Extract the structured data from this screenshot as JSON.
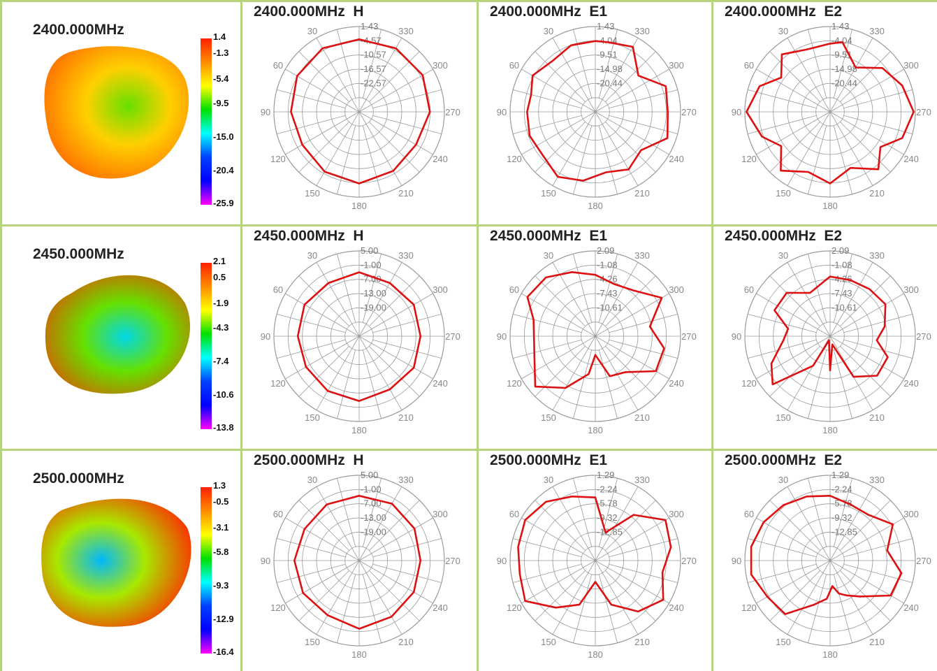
{
  "colors": {
    "background": "#ffffff",
    "cell_border": "#b7d47e",
    "pattern_line": "#dd1111",
    "grid_line": "#9a9a9a",
    "colorbar": [
      "#ff2000",
      "#ff8c00",
      "#ffff00",
      "#00e000",
      "#00ffff",
      "#0040ff",
      "#0000ff",
      "#ff00ff"
    ]
  },
  "rows": [
    {
      "freq": "2400.000MHz",
      "colorbar_labels": [
        "1.4",
        "-1.3",
        "-5.4",
        "-9.5",
        "-15.0",
        "-20.4",
        "-25.9"
      ],
      "plots": [
        {
          "title": "2400.000MHz  H",
          "ring_labels": [
            "1.43",
            "-4.57",
            "-10.57",
            "-16.57",
            "-22.57"
          ]
        },
        {
          "title": "2400.000MHz  E1",
          "ring_labels": [
            "1.43",
            "-4.04",
            "-9.51",
            "-14.98",
            "-20.44"
          ]
        },
        {
          "title": "2400.000MHz  E2",
          "ring_labels": [
            "1.43",
            "-4.04",
            "-9.51",
            "-14.98",
            "-20.44"
          ]
        }
      ]
    },
    {
      "freq": "2450.000MHz",
      "colorbar_labels": [
        "2.1",
        "0.5",
        "-1.9",
        "-4.3",
        "-7.4",
        "-10.6",
        "-13.8"
      ],
      "plots": [
        {
          "title": "2450.000MHz  H",
          "ring_labels": [
            "5.00",
            "-1.00",
            "-7.00",
            "-13.00",
            "-19.00"
          ]
        },
        {
          "title": "2450.000MHz  E1",
          "ring_labels": [
            "2.09",
            "-1.08",
            "-4.26",
            "-7.43",
            "-10.61"
          ]
        },
        {
          "title": "2450.000MHz  E2",
          "ring_labels": [
            "2.09",
            "-1.08",
            "-4.26",
            "-7.43",
            "-10.61"
          ]
        }
      ]
    },
    {
      "freq": "2500.000MHz",
      "colorbar_labels": [
        "1.3",
        "-0.5",
        "-3.1",
        "-5.8",
        "-9.3",
        "-12.9",
        "-16.4"
      ],
      "plots": [
        {
          "title": "2500.000MHz  H",
          "ring_labels": [
            "5.00",
            "-1.00",
            "-7.00",
            "-13.00",
            "-19.00"
          ]
        },
        {
          "title": "2500.000MHz  E1",
          "ring_labels": [
            "1.29",
            "-2.24",
            "-5.78",
            "-9.32",
            "-12.85"
          ]
        },
        {
          "title": "2500.000MHz  E2",
          "ring_labels": [
            "1.29",
            "-2.24",
            "-5.78",
            "-9.32",
            "-12.85"
          ]
        }
      ]
    }
  ],
  "angle_labels": [
    "30",
    "330",
    "60",
    "300",
    "90",
    "270",
    "120",
    "240",
    "150",
    "210",
    "180"
  ],
  "chart_data": [
    {
      "type": "polar",
      "title": "2400.000MHz  H",
      "angles_deg": [
        0,
        30,
        60,
        90,
        120,
        150,
        180,
        210,
        240,
        270,
        300,
        330
      ],
      "r_fraction": [
        0.85,
        0.86,
        0.84,
        0.8,
        0.77,
        0.81,
        0.84,
        0.8,
        0.77,
        0.83,
        0.86,
        0.86
      ]
    },
    {
      "type": "polar",
      "title": "2400.000MHz  E1",
      "angles_deg": [
        0,
        20,
        40,
        60,
        75,
        90,
        110,
        130,
        150,
        170,
        190,
        210,
        230,
        250,
        270,
        290,
        310,
        330,
        350
      ],
      "r_fraction": [
        0.83,
        0.83,
        0.78,
        0.85,
        0.78,
        0.8,
        0.82,
        0.8,
        0.88,
        0.82,
        0.72,
        0.78,
        0.7,
        0.9,
        0.85,
        0.88,
        0.66,
        0.88,
        0.83
      ]
    },
    {
      "type": "polar",
      "title": "2400.000MHz  E2",
      "angles_deg": [
        0,
        20,
        40,
        55,
        70,
        90,
        110,
        125,
        140,
        160,
        180,
        200,
        220,
        235,
        250,
        270,
        290,
        310,
        330,
        350
      ],
      "r_fraction": [
        0.8,
        0.78,
        0.88,
        0.7,
        0.88,
        0.98,
        0.85,
        0.7,
        0.9,
        0.75,
        0.84,
        0.7,
        0.88,
        0.72,
        0.9,
        0.98,
        0.9,
        0.8,
        0.6,
        0.83
      ]
    },
    {
      "type": "polar",
      "title": "2450.000MHz  H",
      "angles_deg": [
        0,
        30,
        60,
        90,
        120,
        150,
        180,
        210,
        240,
        270,
        300,
        330
      ],
      "r_fraction": [
        0.75,
        0.72,
        0.74,
        0.72,
        0.72,
        0.74,
        0.76,
        0.72,
        0.74,
        0.72,
        0.74,
        0.72
      ]
    },
    {
      "type": "polar",
      "title": "2450.000MHz  E1",
      "angles_deg": [
        0,
        20,
        40,
        60,
        75,
        90,
        110,
        130,
        150,
        170,
        180,
        200,
        220,
        240,
        260,
        280,
        300,
        320,
        340
      ],
      "r_fraction": [
        0.72,
        0.8,
        0.9,
        0.92,
        0.75,
        0.72,
        0.76,
        0.92,
        0.7,
        0.45,
        0.22,
        0.5,
        0.55,
        0.82,
        0.82,
        0.65,
        0.9,
        0.7,
        0.65
      ]
    },
    {
      "type": "polar",
      "title": "2450.000MHz  E2",
      "angles_deg": [
        0,
        25,
        45,
        65,
        80,
        95,
        115,
        130,
        150,
        165,
        180,
        195,
        210,
        230,
        250,
        265,
        280,
        300,
        320,
        340
      ],
      "r_fraction": [
        0.7,
        0.56,
        0.72,
        0.72,
        0.5,
        0.55,
        0.76,
        0.88,
        0.4,
        0.05,
        0.4,
        0.1,
        0.55,
        0.72,
        0.72,
        0.55,
        0.65,
        0.75,
        0.72,
        0.7
      ]
    },
    {
      "type": "polar",
      "title": "2500.000MHz  H",
      "angles_deg": [
        0,
        30,
        60,
        90,
        120,
        150,
        180,
        210,
        240,
        270,
        300,
        330
      ],
      "r_fraction": [
        0.76,
        0.76,
        0.74,
        0.76,
        0.76,
        0.74,
        0.8,
        0.76,
        0.74,
        0.72,
        0.75,
        0.77
      ]
    },
    {
      "type": "polar",
      "title": "2500.000MHz  E1",
      "angles_deg": [
        0,
        20,
        40,
        60,
        80,
        100,
        120,
        140,
        160,
        180,
        200,
        220,
        240,
        260,
        280,
        300,
        320,
        340
      ],
      "r_fraction": [
        0.74,
        0.8,
        0.9,
        0.95,
        0.92,
        0.9,
        0.95,
        0.72,
        0.55,
        0.25,
        0.55,
        0.78,
        0.92,
        0.8,
        0.9,
        0.95,
        0.7,
        0.35
      ]
    },
    {
      "type": "polar",
      "title": "2500.000MHz  E2",
      "angles_deg": [
        0,
        20,
        40,
        60,
        80,
        100,
        120,
        140,
        160,
        175,
        185,
        195,
        205,
        220,
        240,
        260,
        280,
        300,
        320,
        340
      ],
      "r_fraction": [
        0.76,
        0.8,
        0.85,
        0.9,
        0.94,
        0.94,
        0.85,
        0.82,
        0.55,
        0.45,
        0.3,
        0.4,
        0.45,
        0.55,
        0.82,
        0.85,
        0.68,
        0.85,
        0.7,
        0.7
      ]
    }
  ]
}
